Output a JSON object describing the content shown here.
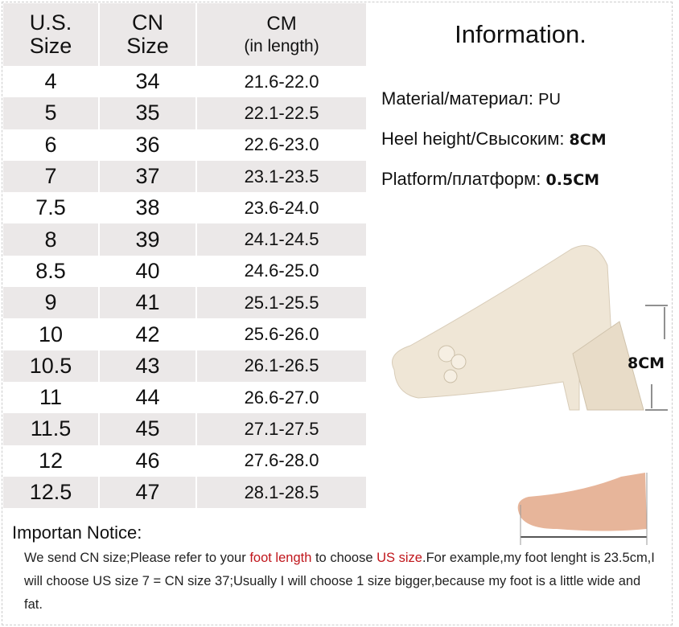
{
  "table": {
    "headers": [
      {
        "line1": "U.S.",
        "line2": "Size"
      },
      {
        "line1": "CN",
        "line2": "Size"
      },
      {
        "line1": "CM",
        "line2": "(in length)"
      }
    ],
    "rows": [
      [
        "4",
        "34",
        "21.6-22.0"
      ],
      [
        "5",
        "35",
        "22.1-22.5"
      ],
      [
        "6",
        "36",
        "22.6-23.0"
      ],
      [
        "7",
        "37",
        "23.1-23.5"
      ],
      [
        "7.5",
        "38",
        "23.6-24.0"
      ],
      [
        "8",
        "39",
        "24.1-24.5"
      ],
      [
        "8.5",
        "40",
        "24.6-25.0"
      ],
      [
        "9",
        "41",
        "25.1-25.5"
      ],
      [
        "10",
        "42",
        "25.6-26.0"
      ],
      [
        "10.5",
        "43",
        "26.1-26.5"
      ],
      [
        "11",
        "44",
        "26.6-27.0"
      ],
      [
        "11.5",
        "45",
        "27.1-27.5"
      ],
      [
        "12",
        "46",
        "27.6-28.0"
      ],
      [
        "12.5",
        "47",
        "28.1-28.5"
      ]
    ]
  },
  "info": {
    "title": "Information.",
    "material_label": "Material/материал: ",
    "material_value": "PU",
    "heel_label": "Heel height/Свысоким: ",
    "heel_value": "8CM",
    "platform_label": "Platform/платформ: ",
    "platform_value": "0.5CM",
    "heel_annotation": "8CM"
  },
  "notice": {
    "title": "Importan Notice:",
    "part1": "We send CN size;Please refer to your ",
    "highlight1": "foot length",
    "part2": " to choose ",
    "highlight2": "US size",
    "part3": ".For example,my foot lenght is 23.5cm,I will choose US size 7 = CN size 37;Usually I will choose 1 size bigger,because my foot is a little wide and fat."
  },
  "colors": {
    "highlight": "#c0161c",
    "row_alt": "#ebe8e8"
  }
}
